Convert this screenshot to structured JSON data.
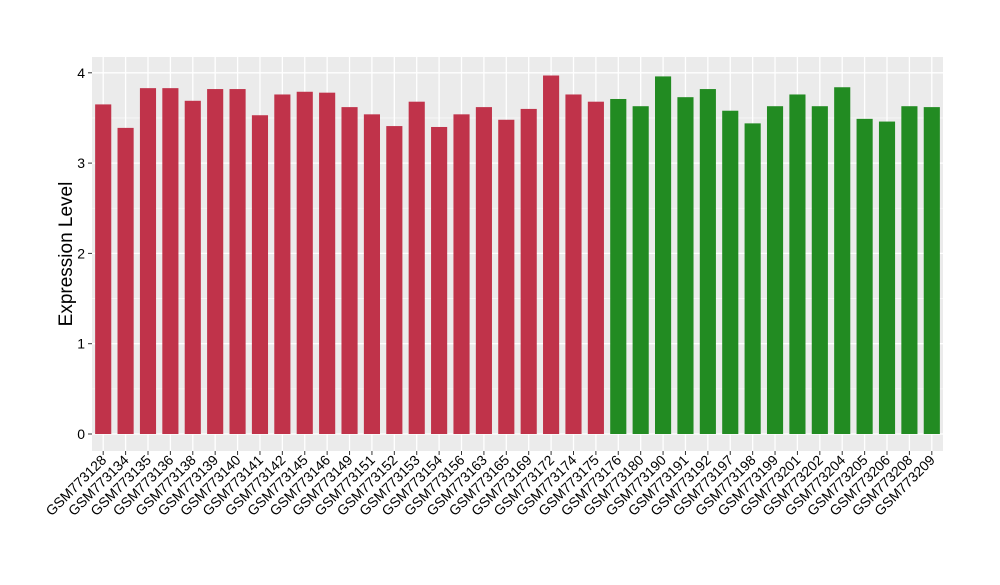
{
  "chart_data": {
    "type": "bar",
    "title": "",
    "xlabel": "",
    "ylabel": "Expression Level",
    "ylim": [
      0,
      4.2
    ],
    "yticks": [
      0,
      1,
      2,
      3,
      4
    ],
    "grid": true,
    "legend": "none",
    "colors": {
      "group1": "#c0334a",
      "group2": "#228b22",
      "panel": "#ebebeb",
      "grid": "#ffffff"
    },
    "categories": [
      "GSM773128",
      "GSM773134",
      "GSM773135",
      "GSM773136",
      "GSM773138",
      "GSM773139",
      "GSM773140",
      "GSM773141",
      "GSM773142",
      "GSM773145",
      "GSM773146",
      "GSM773149",
      "GSM773151",
      "GSM773152",
      "GSM773153",
      "GSM773154",
      "GSM773156",
      "GSM773163",
      "GSM773165",
      "GSM773169",
      "GSM773172",
      "GSM773174",
      "GSM773175",
      "GSM773176",
      "GSM773180",
      "GSM773190",
      "GSM773191",
      "GSM773192",
      "GSM773197",
      "GSM773198",
      "GSM773199",
      "GSM773201",
      "GSM773202",
      "GSM773204",
      "GSM773205",
      "GSM773206",
      "GSM773208",
      "GSM773209"
    ],
    "values": [
      3.65,
      3.39,
      3.83,
      3.83,
      3.69,
      3.82,
      3.82,
      3.53,
      3.76,
      3.79,
      3.78,
      3.62,
      3.54,
      3.41,
      3.68,
      3.4,
      3.54,
      3.62,
      3.48,
      3.6,
      3.97,
      3.76,
      3.68,
      3.71,
      3.63,
      3.96,
      3.73,
      3.82,
      3.58,
      3.44,
      3.63,
      3.76,
      3.63,
      3.84,
      3.49,
      3.46,
      3.63,
      3.62
    ],
    "groups": [
      1,
      1,
      1,
      1,
      1,
      1,
      1,
      1,
      1,
      1,
      1,
      1,
      1,
      1,
      1,
      1,
      1,
      1,
      1,
      1,
      1,
      1,
      1,
      2,
      2,
      2,
      2,
      2,
      2,
      2,
      2,
      2,
      2,
      2,
      2,
      2,
      2,
      2
    ]
  }
}
